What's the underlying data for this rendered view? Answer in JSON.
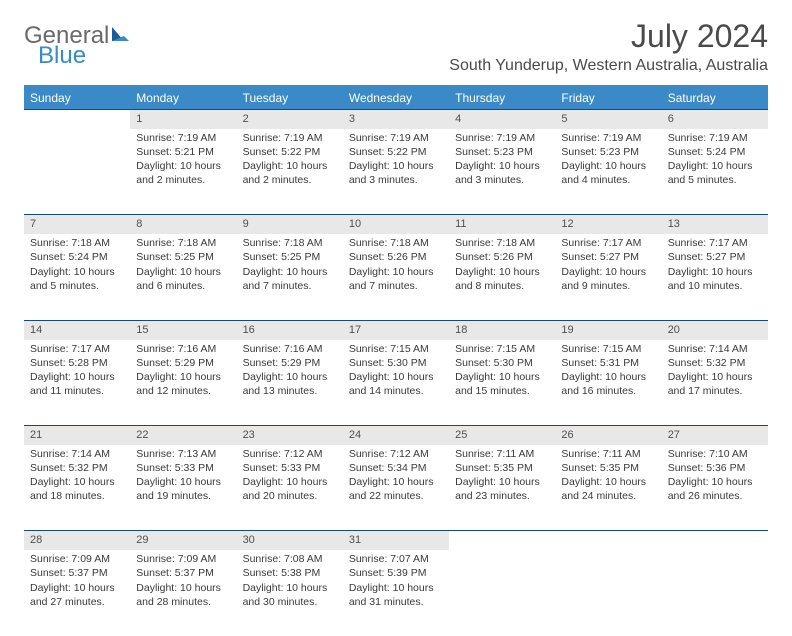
{
  "logo": {
    "word1": "General",
    "word2": "Blue"
  },
  "title": "July 2024",
  "location": "South Yunderup, Western Australia, Australia",
  "colors": {
    "header_bg": "#3a8ac8",
    "header_text": "#ffffff",
    "border": "#164a7a",
    "daynum_bg": "#e8e8e8",
    "text": "#3a3a3a",
    "logo_gray": "#6a6a6a",
    "logo_blue": "#3a8ac8"
  },
  "days_of_week": [
    "Sunday",
    "Monday",
    "Tuesday",
    "Wednesday",
    "Thursday",
    "Friday",
    "Saturday"
  ],
  "weeks": [
    [
      null,
      {
        "n": "1",
        "sr": "Sunrise: 7:19 AM",
        "ss": "Sunset: 5:21 PM",
        "d1": "Daylight: 10 hours",
        "d2": "and 2 minutes."
      },
      {
        "n": "2",
        "sr": "Sunrise: 7:19 AM",
        "ss": "Sunset: 5:22 PM",
        "d1": "Daylight: 10 hours",
        "d2": "and 2 minutes."
      },
      {
        "n": "3",
        "sr": "Sunrise: 7:19 AM",
        "ss": "Sunset: 5:22 PM",
        "d1": "Daylight: 10 hours",
        "d2": "and 3 minutes."
      },
      {
        "n": "4",
        "sr": "Sunrise: 7:19 AM",
        "ss": "Sunset: 5:23 PM",
        "d1": "Daylight: 10 hours",
        "d2": "and 3 minutes."
      },
      {
        "n": "5",
        "sr": "Sunrise: 7:19 AM",
        "ss": "Sunset: 5:23 PM",
        "d1": "Daylight: 10 hours",
        "d2": "and 4 minutes."
      },
      {
        "n": "6",
        "sr": "Sunrise: 7:19 AM",
        "ss": "Sunset: 5:24 PM",
        "d1": "Daylight: 10 hours",
        "d2": "and 5 minutes."
      }
    ],
    [
      {
        "n": "7",
        "sr": "Sunrise: 7:18 AM",
        "ss": "Sunset: 5:24 PM",
        "d1": "Daylight: 10 hours",
        "d2": "and 5 minutes."
      },
      {
        "n": "8",
        "sr": "Sunrise: 7:18 AM",
        "ss": "Sunset: 5:25 PM",
        "d1": "Daylight: 10 hours",
        "d2": "and 6 minutes."
      },
      {
        "n": "9",
        "sr": "Sunrise: 7:18 AM",
        "ss": "Sunset: 5:25 PM",
        "d1": "Daylight: 10 hours",
        "d2": "and 7 minutes."
      },
      {
        "n": "10",
        "sr": "Sunrise: 7:18 AM",
        "ss": "Sunset: 5:26 PM",
        "d1": "Daylight: 10 hours",
        "d2": "and 7 minutes."
      },
      {
        "n": "11",
        "sr": "Sunrise: 7:18 AM",
        "ss": "Sunset: 5:26 PM",
        "d1": "Daylight: 10 hours",
        "d2": "and 8 minutes."
      },
      {
        "n": "12",
        "sr": "Sunrise: 7:17 AM",
        "ss": "Sunset: 5:27 PM",
        "d1": "Daylight: 10 hours",
        "d2": "and 9 minutes."
      },
      {
        "n": "13",
        "sr": "Sunrise: 7:17 AM",
        "ss": "Sunset: 5:27 PM",
        "d1": "Daylight: 10 hours",
        "d2": "and 10 minutes."
      }
    ],
    [
      {
        "n": "14",
        "sr": "Sunrise: 7:17 AM",
        "ss": "Sunset: 5:28 PM",
        "d1": "Daylight: 10 hours",
        "d2": "and 11 minutes."
      },
      {
        "n": "15",
        "sr": "Sunrise: 7:16 AM",
        "ss": "Sunset: 5:29 PM",
        "d1": "Daylight: 10 hours",
        "d2": "and 12 minutes."
      },
      {
        "n": "16",
        "sr": "Sunrise: 7:16 AM",
        "ss": "Sunset: 5:29 PM",
        "d1": "Daylight: 10 hours",
        "d2": "and 13 minutes."
      },
      {
        "n": "17",
        "sr": "Sunrise: 7:15 AM",
        "ss": "Sunset: 5:30 PM",
        "d1": "Daylight: 10 hours",
        "d2": "and 14 minutes."
      },
      {
        "n": "18",
        "sr": "Sunrise: 7:15 AM",
        "ss": "Sunset: 5:30 PM",
        "d1": "Daylight: 10 hours",
        "d2": "and 15 minutes."
      },
      {
        "n": "19",
        "sr": "Sunrise: 7:15 AM",
        "ss": "Sunset: 5:31 PM",
        "d1": "Daylight: 10 hours",
        "d2": "and 16 minutes."
      },
      {
        "n": "20",
        "sr": "Sunrise: 7:14 AM",
        "ss": "Sunset: 5:32 PM",
        "d1": "Daylight: 10 hours",
        "d2": "and 17 minutes."
      }
    ],
    [
      {
        "n": "21",
        "sr": "Sunrise: 7:14 AM",
        "ss": "Sunset: 5:32 PM",
        "d1": "Daylight: 10 hours",
        "d2": "and 18 minutes."
      },
      {
        "n": "22",
        "sr": "Sunrise: 7:13 AM",
        "ss": "Sunset: 5:33 PM",
        "d1": "Daylight: 10 hours",
        "d2": "and 19 minutes."
      },
      {
        "n": "23",
        "sr": "Sunrise: 7:12 AM",
        "ss": "Sunset: 5:33 PM",
        "d1": "Daylight: 10 hours",
        "d2": "and 20 minutes."
      },
      {
        "n": "24",
        "sr": "Sunrise: 7:12 AM",
        "ss": "Sunset: 5:34 PM",
        "d1": "Daylight: 10 hours",
        "d2": "and 22 minutes."
      },
      {
        "n": "25",
        "sr": "Sunrise: 7:11 AM",
        "ss": "Sunset: 5:35 PM",
        "d1": "Daylight: 10 hours",
        "d2": "and 23 minutes."
      },
      {
        "n": "26",
        "sr": "Sunrise: 7:11 AM",
        "ss": "Sunset: 5:35 PM",
        "d1": "Daylight: 10 hours",
        "d2": "and 24 minutes."
      },
      {
        "n": "27",
        "sr": "Sunrise: 7:10 AM",
        "ss": "Sunset: 5:36 PM",
        "d1": "Daylight: 10 hours",
        "d2": "and 26 minutes."
      }
    ],
    [
      {
        "n": "28",
        "sr": "Sunrise: 7:09 AM",
        "ss": "Sunset: 5:37 PM",
        "d1": "Daylight: 10 hours",
        "d2": "and 27 minutes."
      },
      {
        "n": "29",
        "sr": "Sunrise: 7:09 AM",
        "ss": "Sunset: 5:37 PM",
        "d1": "Daylight: 10 hours",
        "d2": "and 28 minutes."
      },
      {
        "n": "30",
        "sr": "Sunrise: 7:08 AM",
        "ss": "Sunset: 5:38 PM",
        "d1": "Daylight: 10 hours",
        "d2": "and 30 minutes."
      },
      {
        "n": "31",
        "sr": "Sunrise: 7:07 AM",
        "ss": "Sunset: 5:39 PM",
        "d1": "Daylight: 10 hours",
        "d2": "and 31 minutes."
      },
      null,
      null,
      null
    ]
  ]
}
